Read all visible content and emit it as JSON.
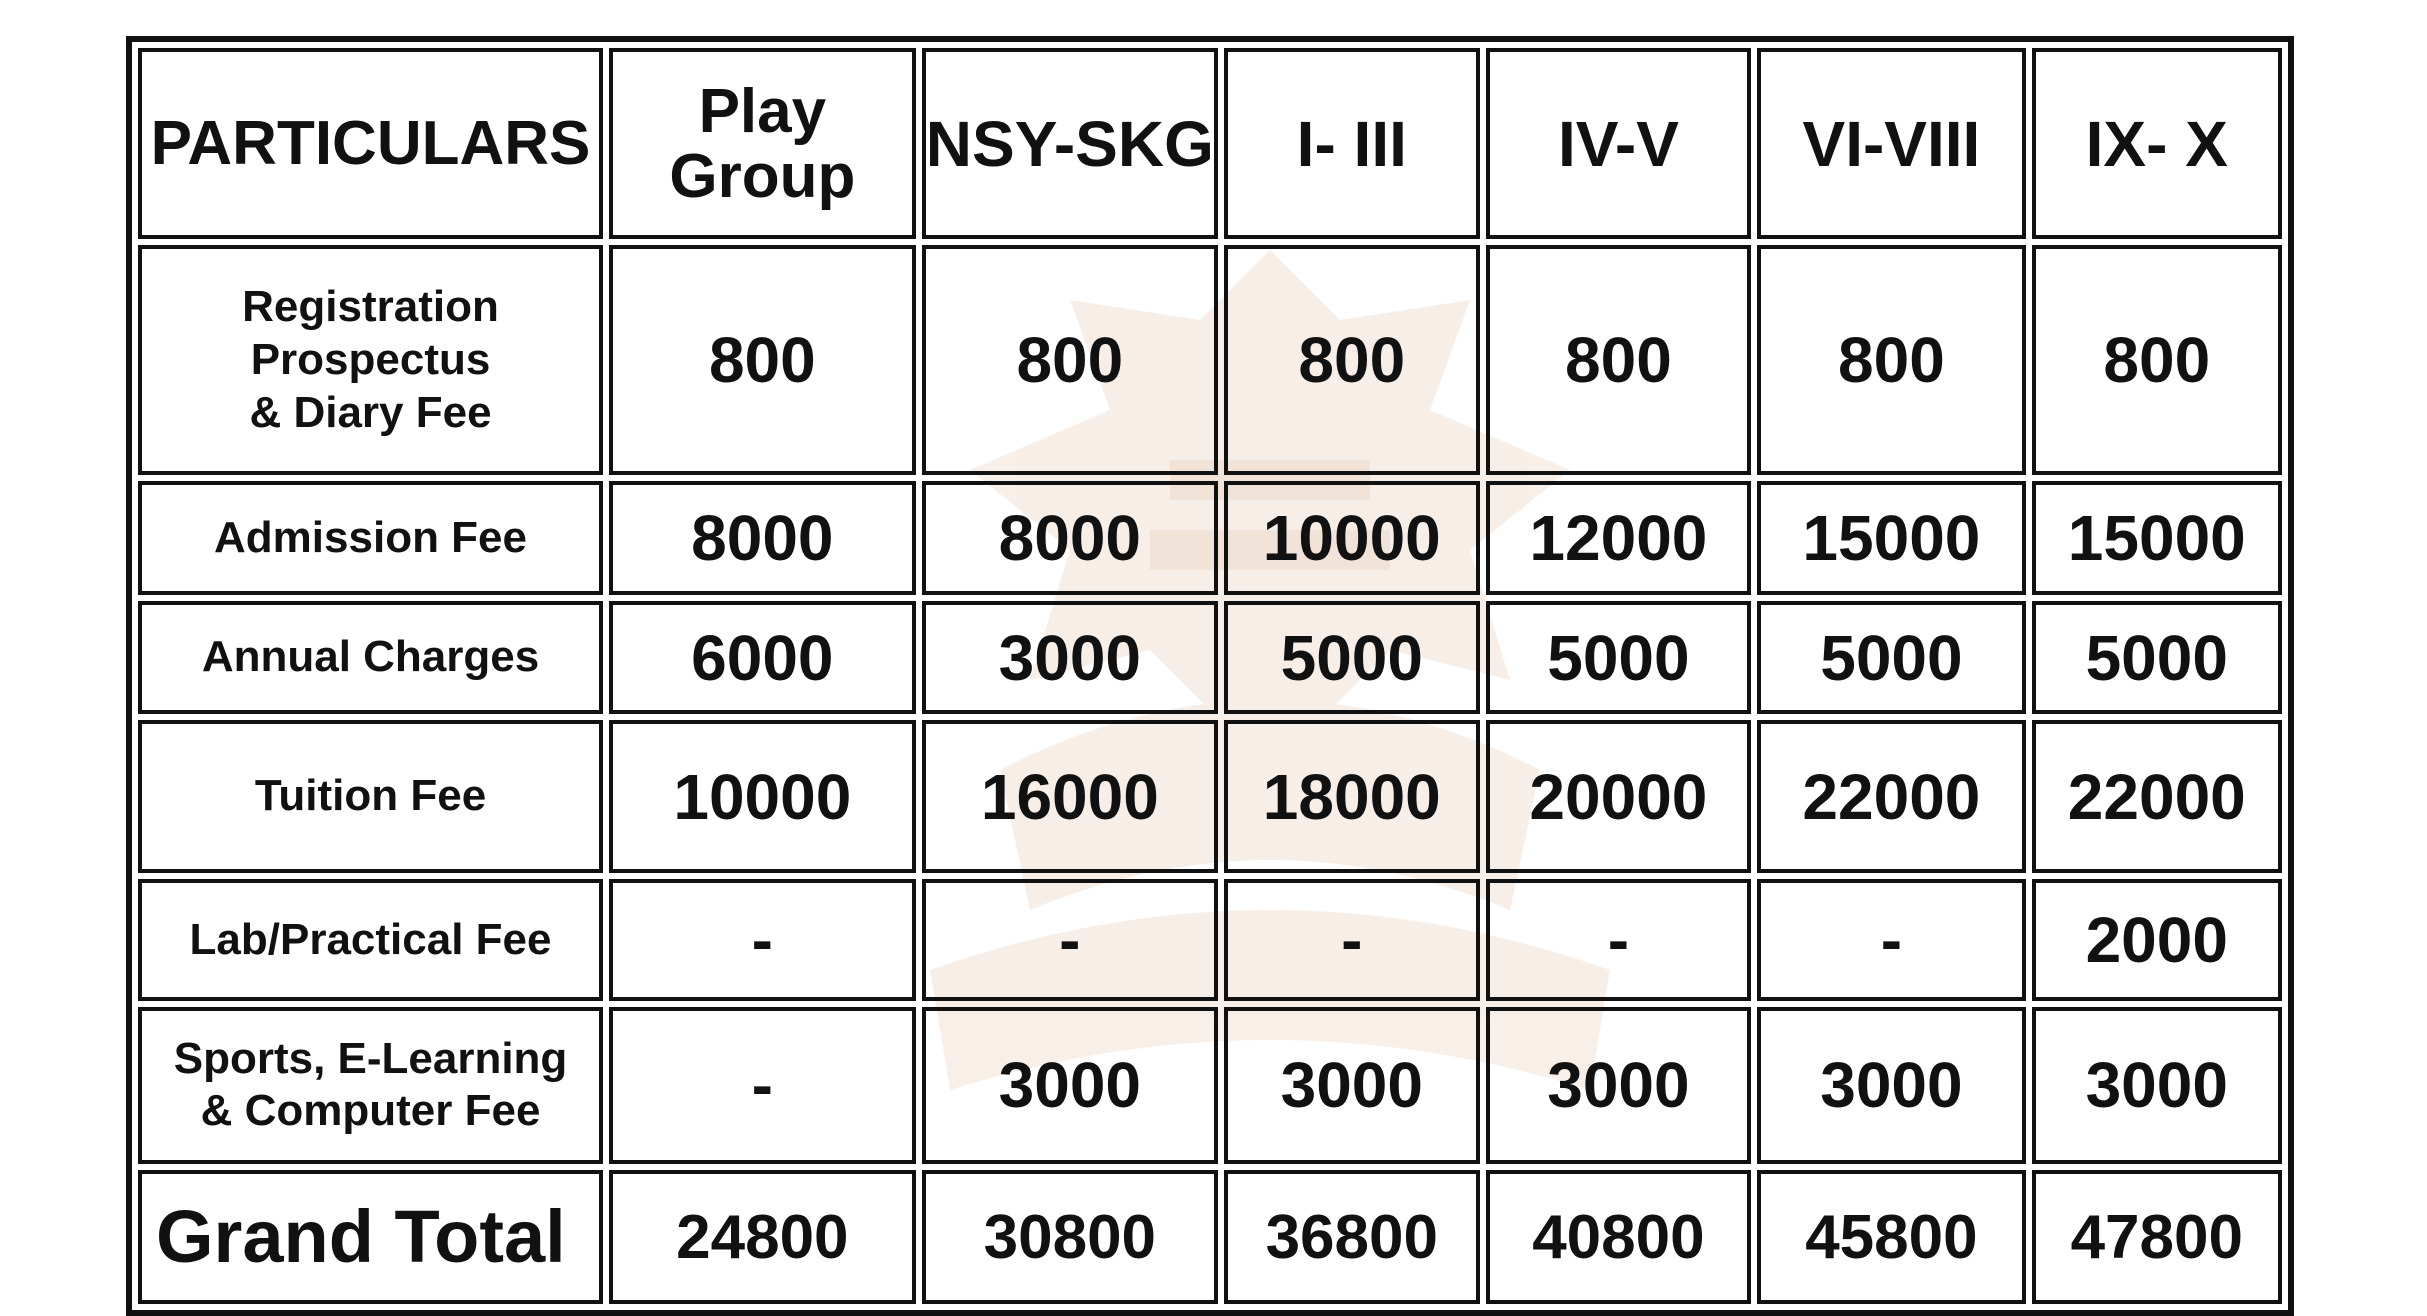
{
  "table": {
    "headers": {
      "particulars": "PARTICULARS",
      "play_group_line1": "Play",
      "play_group_line2": "Group",
      "nsy_skg": "NSY-SKG",
      "i_iii": "I- III",
      "iv_v": "IV-V",
      "vi_viii": "VI-VIII",
      "ix_x": "IX- X"
    },
    "rows": [
      {
        "label_line1": "Registration Prospectus",
        "label_line2": "& Diary Fee",
        "values": [
          "800",
          "800",
          "800",
          "800",
          "800",
          "800"
        ]
      },
      {
        "label_line1": "Admission Fee",
        "label_line2": "",
        "values": [
          "8000",
          "8000",
          "10000",
          "12000",
          "15000",
          "15000"
        ]
      },
      {
        "label_line1": "Annual Charges",
        "label_line2": "",
        "values": [
          "6000",
          "3000",
          "5000",
          "5000",
          "5000",
          "5000"
        ]
      },
      {
        "label_line1": "Tuition Fee",
        "label_line2": "",
        "values": [
          "10000",
          "16000",
          "18000",
          "20000",
          "22000",
          "22000"
        ]
      },
      {
        "label_line1": "Lab/Practical Fee",
        "label_line2": "",
        "values": [
          "-",
          "-",
          "-",
          "-",
          "-",
          "2000"
        ]
      },
      {
        "label_line1": "Sports, E-Learning",
        "label_line2": "& Computer Fee",
        "values": [
          "-",
          "3000",
          "3000",
          "3000",
          "3000",
          "3000"
        ]
      }
    ],
    "grand_total": {
      "label": "Grand Total",
      "values": [
        "24800",
        "30800",
        "36800",
        "40800",
        "45800",
        "47800"
      ]
    }
  },
  "colors": {
    "border": "#111111",
    "text": "#111111",
    "background": "#ffffff",
    "watermark": "#f3e6dc"
  }
}
